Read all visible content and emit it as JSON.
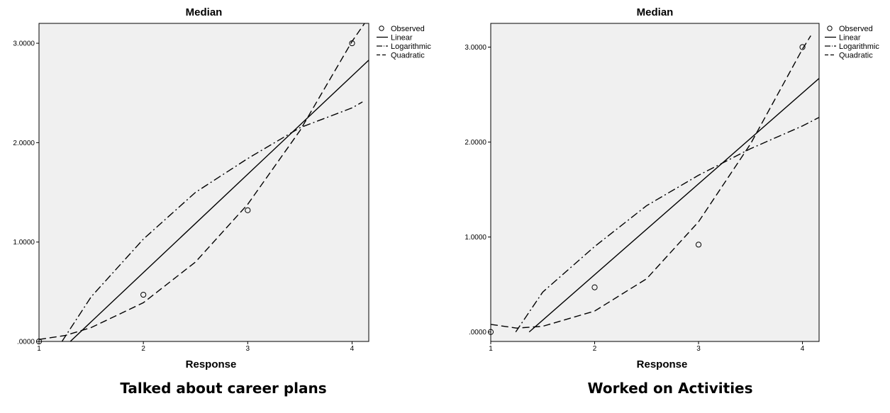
{
  "chart_data": [
    {
      "type": "line",
      "title": "Median",
      "xlabel": "Response",
      "caption": "Talked about career plans",
      "xlim": [
        1,
        4.16
      ],
      "ylim": [
        0,
        3.2
      ],
      "xticks": [
        "1",
        "2",
        "3",
        "4"
      ],
      "yticks": [
        ".0000",
        "1.0000",
        "2.0000",
        "3.0000"
      ],
      "legend_position": "top-right",
      "observed": {
        "name": "Observed",
        "x": [
          1,
          2,
          3,
          4
        ],
        "y": [
          0.0,
          0.47,
          1.32,
          3.0
        ]
      },
      "series": [
        {
          "name": "Linear",
          "style": "solid",
          "x": [
            1.3,
            4.16
          ],
          "y": [
            0.0,
            2.83
          ]
        },
        {
          "name": "Logarithmic",
          "style": "dashdot",
          "x": [
            1.22,
            1.5,
            2.0,
            2.5,
            3.0,
            3.5,
            4.0,
            4.1
          ],
          "y": [
            0.0,
            0.45,
            1.03,
            1.5,
            1.84,
            2.15,
            2.35,
            2.41
          ]
        },
        {
          "name": "Quadratic",
          "style": "dashed",
          "x": [
            1.0,
            1.25,
            1.5,
            2.0,
            2.5,
            3.0,
            3.5,
            4.0,
            4.12
          ],
          "y": [
            0.02,
            0.06,
            0.14,
            0.39,
            0.8,
            1.38,
            2.12,
            3.02,
            3.2
          ]
        }
      ]
    },
    {
      "type": "line",
      "title": "Median",
      "xlabel": "Response",
      "caption": "Worked on Activities",
      "xlim": [
        1,
        4.16
      ],
      "ylim": [
        -0.1,
        3.25
      ],
      "xticks": [
        "1",
        "2",
        "3",
        "4"
      ],
      "yticks": [
        ".0000",
        "1.0000",
        "2.0000",
        "3.0000"
      ],
      "legend_position": "top-right",
      "observed": {
        "name": "Observed",
        "x": [
          1,
          2,
          3,
          4
        ],
        "y": [
          0.0,
          0.47,
          0.92,
          3.0
        ]
      },
      "series": [
        {
          "name": "Linear",
          "style": "solid",
          "x": [
            1.37,
            4.16
          ],
          "y": [
            0.0,
            2.67
          ]
        },
        {
          "name": "Logarithmic",
          "style": "dashdot",
          "x": [
            1.24,
            1.5,
            2.0,
            2.5,
            3.0,
            3.5,
            4.0,
            4.16
          ],
          "y": [
            0.0,
            0.42,
            0.9,
            1.33,
            1.65,
            1.93,
            2.17,
            2.26
          ]
        },
        {
          "name": "Quadratic",
          "style": "dashed",
          "x": [
            1.0,
            1.25,
            1.5,
            2.0,
            2.5,
            3.0,
            3.5,
            4.0,
            4.08
          ],
          "y": [
            0.08,
            0.04,
            0.06,
            0.22,
            0.56,
            1.16,
            1.98,
            2.98,
            3.12
          ]
        }
      ]
    }
  ]
}
